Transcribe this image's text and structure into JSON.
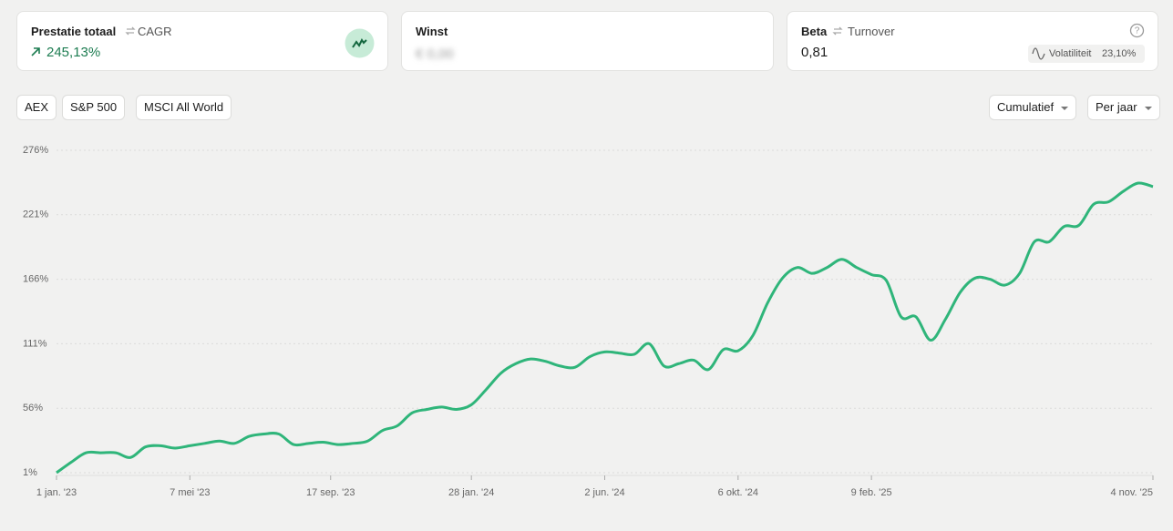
{
  "cards": [
    {
      "title": "Prestatie totaal",
      "alt": "CAGR",
      "value": "245,13%"
    },
    {
      "title": "Winst",
      "value": "€ 0,00"
    },
    {
      "title": "Beta",
      "alt": "Turnover",
      "value": "0,81",
      "badge_label": "Volatiliteit",
      "badge_value": "23,10%"
    }
  ],
  "benchmarks": [
    "AEX",
    "S&P 500",
    "MSCI All World"
  ],
  "dropdowns": [
    "Cumulatief",
    "Per jaar"
  ],
  "chart_data": {
    "type": "line",
    "color": "#2fb57a",
    "values": [
      1,
      10,
      18,
      18,
      18,
      14,
      23,
      24,
      22,
      24,
      26,
      28,
      26,
      32,
      34,
      34,
      25,
      26,
      27,
      25,
      26,
      28,
      37,
      41,
      52,
      55,
      57,
      55,
      59,
      72,
      86,
      94,
      98,
      96,
      92,
      91,
      100,
      104,
      103,
      102,
      111,
      92,
      94,
      97,
      89,
      106,
      105,
      118,
      146,
      167,
      176,
      171,
      176,
      183,
      176,
      170,
      165,
      134,
      134,
      114,
      132,
      155,
      167,
      166,
      161,
      171,
      198,
      198,
      211,
      212,
      230,
      232,
      241,
      248,
      245
    ],
    "xlim": [
      0,
      74
    ],
    "xticks": [
      {
        "value": 0,
        "label": "1 jan. '23"
      },
      {
        "value": 9,
        "label": "7 mei '23"
      },
      {
        "value": 18.5,
        "label": "17 sep. '23"
      },
      {
        "value": 28,
        "label": "28 jan. '24"
      },
      {
        "value": 37,
        "label": "2 jun. '24"
      },
      {
        "value": 46,
        "label": "6 okt. '24"
      },
      {
        "value": 55,
        "label": "9 feb. '25"
      },
      {
        "value": 74,
        "label": "4 nov. '25"
      }
    ],
    "ylim": [
      1,
      276
    ],
    "yticks": [
      {
        "value": 1,
        "label": "1%"
      },
      {
        "value": 56,
        "label": "56%"
      },
      {
        "value": 111,
        "label": "111%"
      },
      {
        "value": 166,
        "label": "166%"
      },
      {
        "value": 221,
        "label": "221%"
      },
      {
        "value": 276,
        "label": "276%"
      }
    ],
    "grid": true
  }
}
